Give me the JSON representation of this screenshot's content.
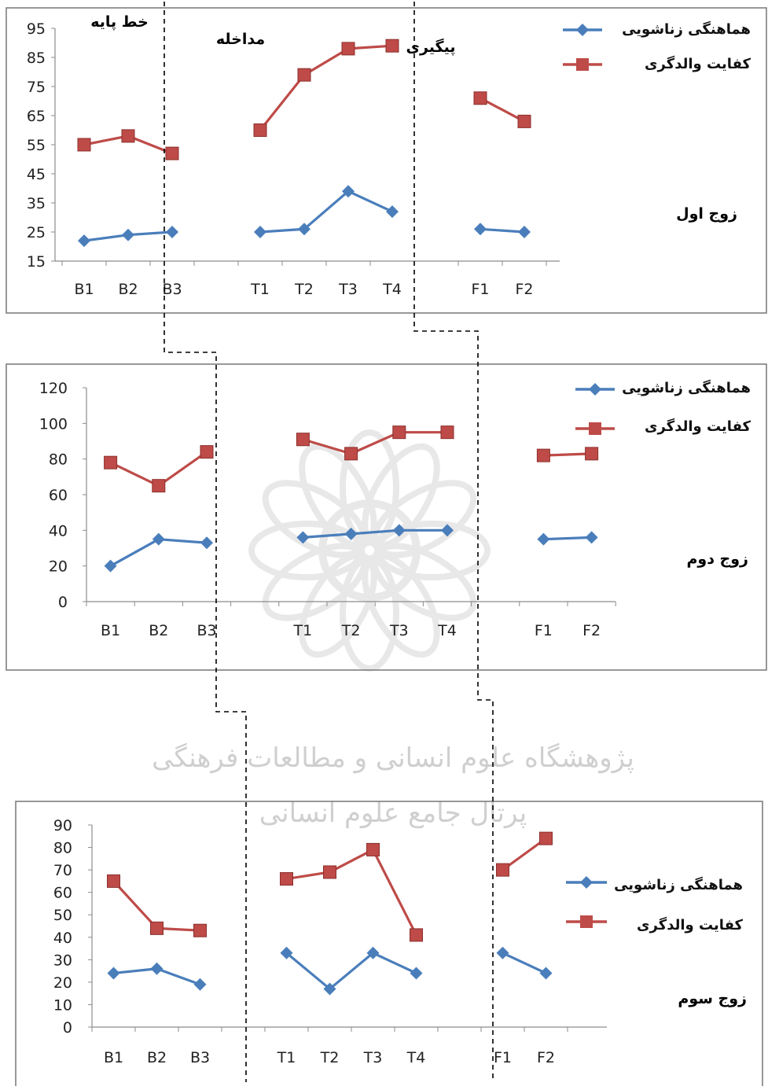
{
  "colors": {
    "harmony": "#4A7EBB",
    "quality": "#BE4B48",
    "frame": "#7f7f7f",
    "grid_axis": "#8c8c8c",
    "watermark": "#d6d6d6"
  },
  "phase_labels": {
    "baseline": "خط پایه",
    "intervention": "مداخله",
    "followup": "پیگیری"
  },
  "watermark": {
    "line1": "پژوهشگاه علوم انسانی و مطالعات فرهنگی",
    "line2": "پرتال جامع علوم انسانی"
  },
  "chart_data": [
    {
      "type": "line",
      "side_label": "زوج اول",
      "categories": [
        "B1",
        "B2",
        "B3",
        "T1",
        "T2",
        "T3",
        "T4",
        "F1",
        "F2"
      ],
      "ylim": [
        15,
        95
      ],
      "yticks": [
        15,
        25,
        35,
        45,
        55,
        65,
        75,
        85,
        95
      ],
      "series": [
        {
          "name": "هماهنگی زناشویی",
          "key": "harmony",
          "marker": "diamond",
          "values": [
            22,
            24,
            25,
            25,
            26,
            39,
            32,
            26,
            25
          ]
        },
        {
          "name": "کفایت والدگری",
          "key": "quality",
          "marker": "square",
          "values": [
            55,
            58,
            52,
            60,
            79,
            88,
            89,
            71,
            63
          ]
        }
      ]
    },
    {
      "type": "line",
      "side_label": "زوج دوم",
      "categories": [
        "B1",
        "B2",
        "B3",
        "T1",
        "T2",
        "T3",
        "T4",
        "F1",
        "F2"
      ],
      "ylim": [
        0,
        120
      ],
      "yticks": [
        0,
        20,
        40,
        60,
        80,
        100,
        120
      ],
      "series": [
        {
          "name": "هماهنگی زناشویی",
          "key": "harmony",
          "marker": "diamond",
          "values": [
            20,
            35,
            33,
            36,
            38,
            40,
            40,
            35,
            36
          ]
        },
        {
          "name": "کفایت والدگری",
          "key": "quality",
          "marker": "square",
          "values": [
            78,
            65,
            84,
            91,
            83,
            95,
            95,
            82,
            83
          ]
        }
      ]
    },
    {
      "type": "line",
      "side_label": "زوج سوم",
      "categories": [
        "B1",
        "B2",
        "B3",
        "T1",
        "T2",
        "T3",
        "T4",
        "F1",
        "F2"
      ],
      "ylim": [
        0,
        90
      ],
      "yticks": [
        0,
        10,
        20,
        30,
        40,
        50,
        60,
        70,
        80,
        90
      ],
      "series": [
        {
          "name": "هماهنگی زناشویی",
          "key": "harmony",
          "marker": "diamond",
          "values": [
            24,
            26,
            19,
            33,
            17,
            33,
            24,
            33,
            24
          ]
        },
        {
          "name": "کفایت والدگری",
          "key": "quality",
          "marker": "square",
          "values": [
            65,
            44,
            43,
            66,
            69,
            79,
            41,
            70,
            84
          ]
        }
      ]
    }
  ]
}
